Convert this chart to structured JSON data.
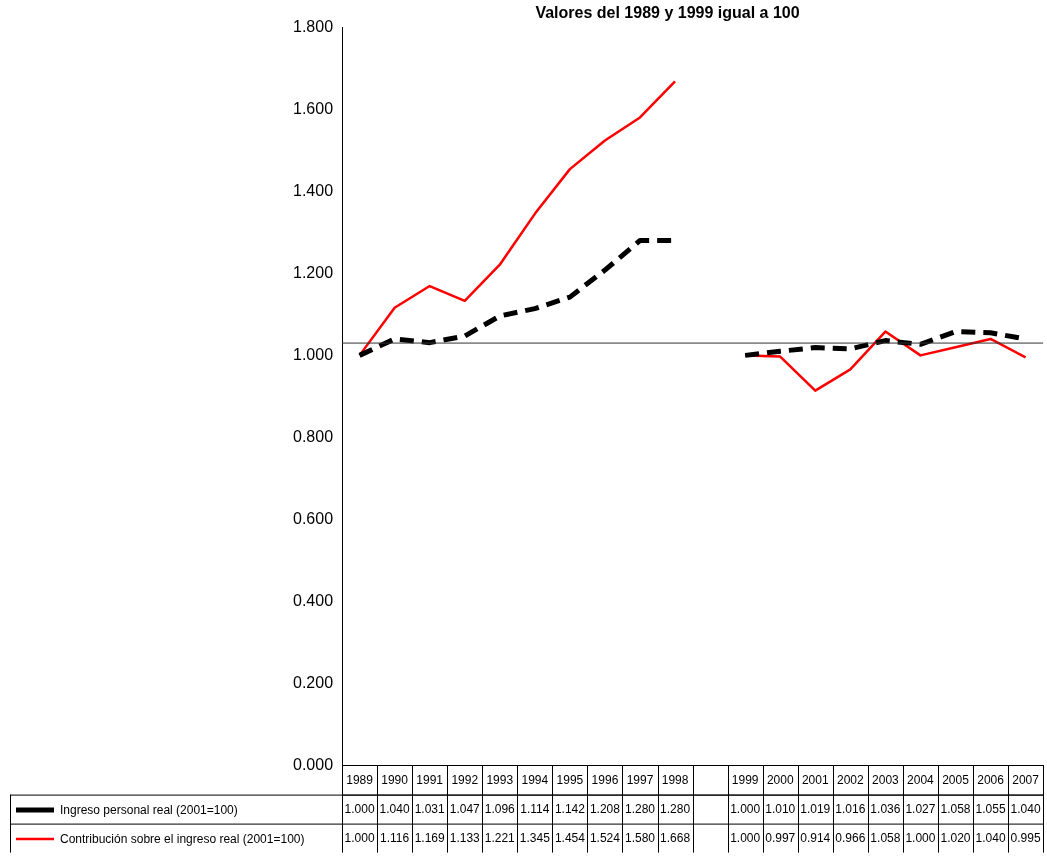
{
  "chart_data": {
    "type": "line",
    "title": "Valores del 1989 y 1999 igual a 100",
    "categories": [
      "1989",
      "1990",
      "1991",
      "1992",
      "1993",
      "1994",
      "1995",
      "1996",
      "1997",
      "1998",
      null,
      "1999",
      "2000",
      "2001",
      "2002",
      "2003",
      "2004",
      "2005",
      "2006",
      "2007"
    ],
    "series": [
      {
        "name": "Ingreso personal real (2001=100)",
        "color": "#000000",
        "line_style": "dashed",
        "values": [
          1.0,
          1.04,
          1.031,
          1.047,
          1.096,
          1.114,
          1.142,
          1.208,
          1.28,
          1.28,
          null,
          1.0,
          1.01,
          1.019,
          1.016,
          1.036,
          1.027,
          1.058,
          1.055,
          1.04
        ],
        "value_labels": [
          "1.000",
          "1.040",
          "1.031",
          "1.047",
          "1.096",
          "1.114",
          "1.142",
          "1.208",
          "1.280",
          "1.280",
          null,
          "1.000",
          "1.010",
          "1.019",
          "1.016",
          "1.036",
          "1.027",
          "1.058",
          "1.055",
          "1.040"
        ]
      },
      {
        "name": "Contribución sobre el ingreso real (2001=100)",
        "color": "#ff0000",
        "line_style": "solid",
        "values": [
          1.0,
          1.116,
          1.169,
          1.133,
          1.221,
          1.345,
          1.454,
          1.524,
          1.58,
          1.668,
          null,
          1.0,
          0.997,
          0.914,
          0.966,
          1.058,
          1.0,
          1.02,
          1.04,
          0.995
        ],
        "value_labels": [
          "1.000",
          "1.116",
          "1.169",
          "1.133",
          "1.221",
          "1.345",
          "1.454",
          "1.524",
          "1.580",
          "1.668",
          null,
          "1.000",
          "0.997",
          "0.914",
          "0.966",
          "1.058",
          "1.000",
          "1.020",
          "1.040",
          "0.995"
        ]
      }
    ],
    "ylim": [
      0,
      1.8
    ],
    "yticks": [
      {
        "value": 0,
        "label": "0.000"
      },
      {
        "value": 0.2,
        "label": "0.200"
      },
      {
        "value": 0.4,
        "label": "0.400"
      },
      {
        "value": 0.6,
        "label": "0.600"
      },
      {
        "value": 0.8,
        "label": "0.800"
      },
      {
        "value": 1.0,
        "label": "1.000"
      },
      {
        "value": 1.2,
        "label": "1.200"
      },
      {
        "value": 1.4,
        "label": "1.400"
      },
      {
        "value": 1.6,
        "label": "1.600"
      },
      {
        "value": 1.8,
        "label": "1.800"
      }
    ],
    "ref_lines": [
      {
        "axis": "y",
        "value": 1.03,
        "color": "#333333"
      }
    ],
    "grid": false,
    "legend": "bottom left",
    "marker": "none"
  }
}
